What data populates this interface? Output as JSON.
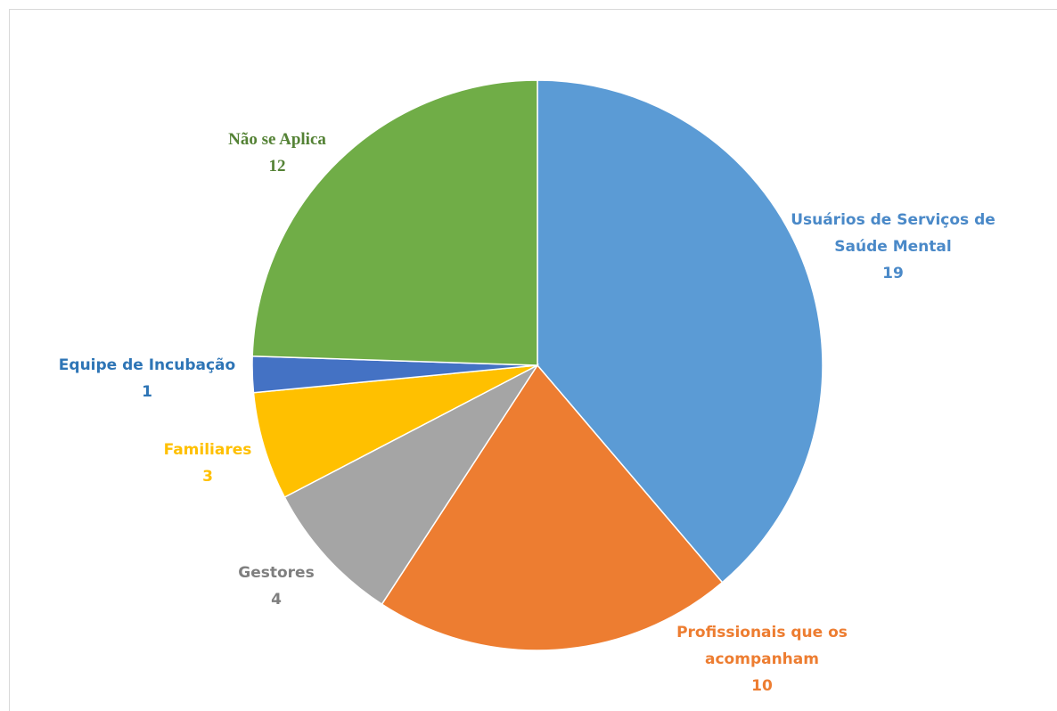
{
  "chart_data": {
    "type": "pie",
    "categories": [
      "Usuários de Serviços de Saúde Mental",
      "Profissionais que os acompanham",
      "Gestores",
      "Familiares",
      "Equipe de Incubação",
      "Não se Aplica"
    ],
    "values": [
      19,
      10,
      4,
      3,
      1,
      12
    ],
    "colors": [
      "#5b9bd5",
      "#ed7d31",
      "#a5a5a5",
      "#ffc000",
      "#4472c4",
      "#70ad47"
    ],
    "label_colors": [
      "#4a89c8",
      "#ed7d31",
      "#7f7f7f",
      "#ffc000",
      "#2e75b6",
      "#548235"
    ]
  }
}
